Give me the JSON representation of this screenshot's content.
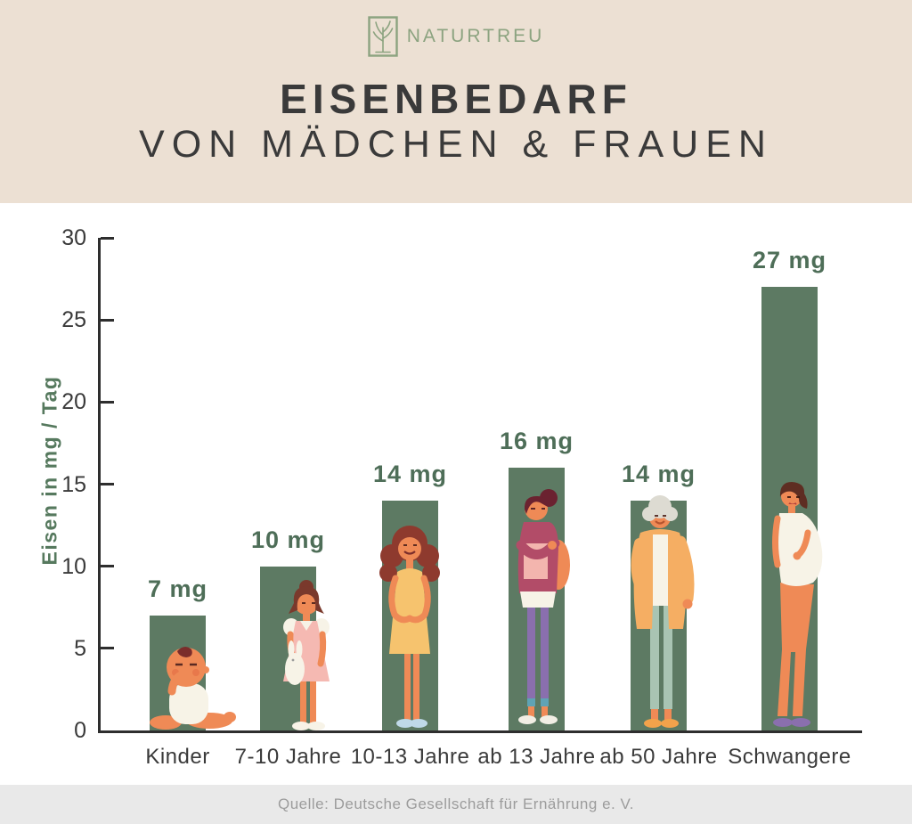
{
  "brand": {
    "name": "NATURTREU",
    "logo_icon": "tree-icon",
    "color": "#8CA380"
  },
  "header": {
    "title_line1": "EISENBEDARF",
    "title_line2": "VON MÄDCHEN & FRAUEN",
    "background": "#ECE0D3",
    "text_color": "#3A3A3A"
  },
  "chart_data": {
    "type": "bar",
    "title": "Eisenbedarf von Mädchen & Frauen",
    "ylabel": "Eisen in mg / Tag",
    "xlabel": "",
    "ylim": [
      0,
      30
    ],
    "yticks": [
      0,
      5,
      10,
      15,
      20,
      25,
      30
    ],
    "grid": false,
    "legend": false,
    "categories": [
      "Kinder",
      "7-10 Jahre",
      "10-13 Jahre",
      "ab 13 Jahre",
      "ab 50 Jahre",
      "Schwangere"
    ],
    "values": [
      7,
      10,
      14,
      16,
      14,
      27
    ],
    "value_labels": [
      "7 mg",
      "10 mg",
      "14 mg",
      "16 mg",
      "14 mg",
      "27 mg"
    ],
    "unit": "mg/Tag",
    "bar_color": "#5D7A63",
    "value_label_color": "#4E6E58",
    "axis_color": "#2E2E2E",
    "figures": [
      "baby",
      "girl-with-bunny",
      "teen-girl",
      "young-woman-with-books",
      "older-woman",
      "pregnant-woman"
    ]
  },
  "footer": {
    "source": "Quelle: Deutsche Gesellschaft für Ernährung e. V.",
    "background": "#E9E9E9",
    "text_color": "#9C9C9C"
  }
}
